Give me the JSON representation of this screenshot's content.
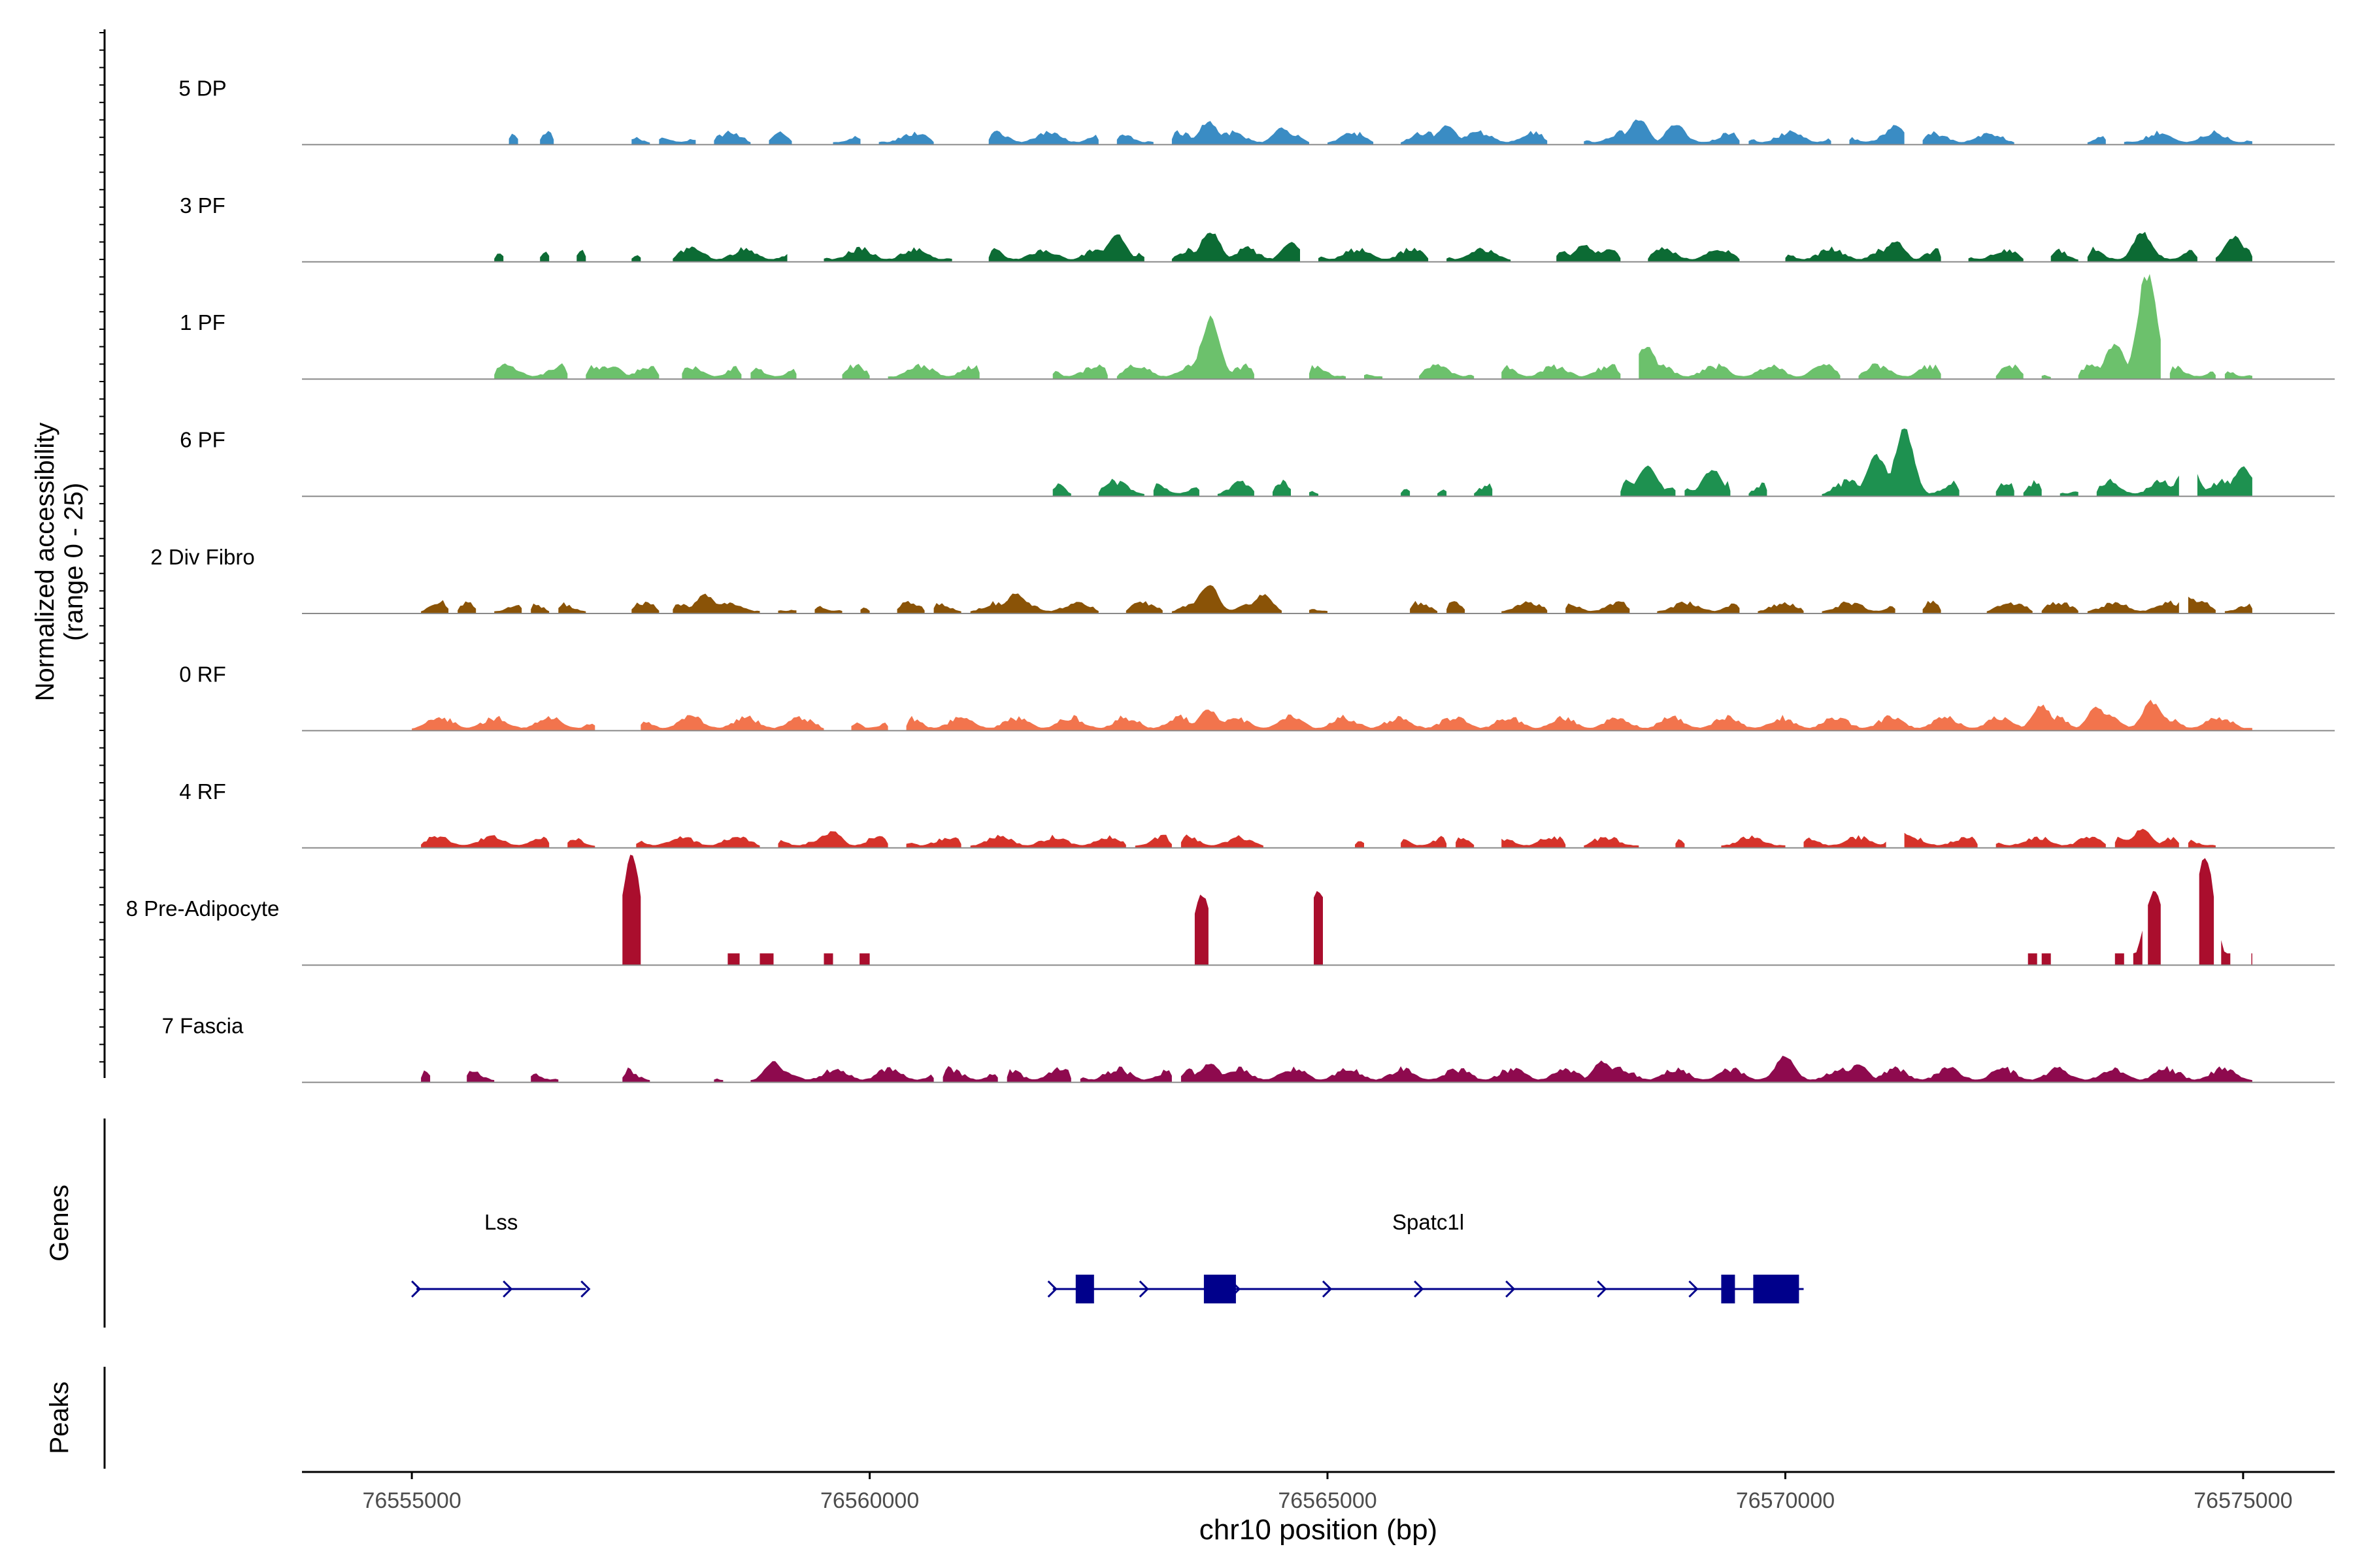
{
  "chart_data": {
    "type": "area",
    "title": "",
    "chromosome": "chr10",
    "xlabel": "chr10 position (bp)",
    "ylabel_line1": "Normalized accessibility",
    "ylabel_line2": "(range 0 - 25)",
    "xlim": [
      76553800,
      76576000
    ],
    "ylim": [
      0,
      25
    ],
    "region": [
      76555000,
      76575100
    ],
    "x_ticks": [
      {
        "value": 76555000,
        "label": "76555000"
      },
      {
        "value": 76560000,
        "label": "76560000"
      },
      {
        "value": 76565000,
        "label": "76565000"
      },
      {
        "value": 76570000,
        "label": "76570000"
      },
      {
        "value": 76575000,
        "label": "76575000"
      }
    ],
    "tracks": [
      {
        "name": "5 DP",
        "color": "#3a8cc4",
        "regions": [
          [
            76556060,
            76556160
          ],
          [
            76556400,
            76556550
          ],
          [
            76557400,
            76557600
          ],
          [
            76557700,
            76558100
          ],
          [
            76558300,
            76558700
          ],
          [
            76558900,
            76559150
          ],
          [
            76559600,
            76559900
          ],
          [
            76560100,
            76560700
          ],
          [
            76561300,
            76562500
          ],
          [
            76562700,
            76563100
          ],
          [
            76563300,
            76564800
          ],
          [
            76565000,
            76565500
          ],
          [
            76565800,
            76567400
          ],
          [
            76567800,
            76569500
          ],
          [
            76569600,
            76570500
          ],
          [
            76570700,
            76571300
          ],
          [
            76571500,
            76572500
          ],
          [
            76573300,
            76573500
          ],
          [
            76573700,
            76575100
          ]
        ],
        "peaks": [
          [
            76563700,
            5.5
          ],
          [
            76564500,
            4.0
          ],
          [
            76566300,
            4.5
          ],
          [
            76568400,
            6.0
          ],
          [
            76568800,
            5.0
          ],
          [
            76571200,
            4.5
          ]
        ],
        "noise": 2.2
      },
      {
        "name": "3 PF",
        "color": "#0c6b34",
        "regions": [
          [
            76555900,
            76556000
          ],
          [
            76556400,
            76556500
          ],
          [
            76556800,
            76556900
          ],
          [
            76557400,
            76557500
          ],
          [
            76557850,
            76559100
          ],
          [
            76559500,
            76560900
          ],
          [
            76561300,
            76563000
          ],
          [
            76563300,
            76564700
          ],
          [
            76564900,
            76566100
          ],
          [
            76566300,
            76567000
          ],
          [
            76567500,
            76568200
          ],
          [
            76568500,
            76569500
          ],
          [
            76570000,
            76571700
          ],
          [
            76572000,
            76572600
          ],
          [
            76572900,
            76573200
          ],
          [
            76573300,
            76574500
          ],
          [
            76574700,
            76575100
          ]
        ],
        "peaks": [
          [
            76559250,
            5.5
          ],
          [
            76562700,
            6.5
          ],
          [
            76563720,
            7.5
          ],
          [
            76564600,
            4.5
          ],
          [
            76567800,
            4.0
          ],
          [
            76571200,
            5.0
          ],
          [
            76573900,
            7.0
          ],
          [
            76574900,
            6.0
          ]
        ],
        "noise": 2.4
      },
      {
        "name": "1 PF",
        "color": "#6cc16c",
        "regions": [
          [
            76555900,
            76556700
          ],
          [
            76556900,
            76557700
          ],
          [
            76557950,
            76558600
          ],
          [
            76558700,
            76559200
          ],
          [
            76559700,
            76560000
          ],
          [
            76560200,
            76561200
          ],
          [
            76562000,
            76562600
          ],
          [
            76562700,
            76564200
          ],
          [
            76564800,
            76565200
          ],
          [
            76565400,
            76565600
          ],
          [
            76566000,
            76566600
          ],
          [
            76566900,
            76568200
          ],
          [
            76568400,
            76570600
          ],
          [
            76570800,
            76571700
          ],
          [
            76572300,
            76572600
          ],
          [
            76572800,
            76572900
          ],
          [
            76573200,
            76574100
          ],
          [
            76574200,
            76574700
          ],
          [
            76574800,
            76575100
          ]
        ],
        "peaks": [
          [
            76563720,
            14.5
          ],
          [
            76568480,
            8.0
          ],
          [
            76573950,
            25.0
          ],
          [
            76573600,
            8.5
          ],
          [
            76570400,
            3.5
          ],
          [
            76557200,
            3.0
          ]
        ],
        "noise": 2.5
      },
      {
        "name": "6 PF",
        "color": "#1e9150",
        "regions": [
          [
            76562000,
            76562200
          ],
          [
            76562500,
            76563000
          ],
          [
            76563100,
            76563600
          ],
          [
            76563800,
            76564200
          ],
          [
            76564400,
            76564600
          ],
          [
            76564800,
            76564900
          ],
          [
            76565800,
            76565900
          ],
          [
            76566200,
            76566300
          ],
          [
            76566600,
            76566800
          ],
          [
            76568200,
            76568800
          ],
          [
            76568900,
            76569400
          ],
          [
            76569600,
            76569800
          ],
          [
            76570400,
            76571900
          ],
          [
            76572300,
            76572500
          ],
          [
            76572600,
            76572800
          ],
          [
            76573000,
            76573200
          ],
          [
            76573400,
            76574300
          ],
          [
            76574500,
            76575100
          ]
        ],
        "peaks": [
          [
            76568500,
            7.5
          ],
          [
            76569200,
            6.5
          ],
          [
            76571000,
            10.0
          ],
          [
            76571300,
            15.5
          ],
          [
            76574400,
            8.5
          ],
          [
            76575000,
            7.0
          ]
        ],
        "noise": 2.8
      },
      {
        "name": "2 Div Fibro",
        "color": "#8a5307",
        "regions": [
          [
            76555100,
            76555400
          ],
          [
            76555500,
            76555700
          ],
          [
            76555900,
            76556200
          ],
          [
            76556300,
            76556500
          ],
          [
            76556600,
            76556900
          ],
          [
            76557400,
            76557700
          ],
          [
            76557850,
            76558800
          ],
          [
            76559000,
            76559200
          ],
          [
            76559400,
            76559700
          ],
          [
            76559900,
            76560000
          ],
          [
            76560300,
            76560600
          ],
          [
            76560700,
            76561000
          ],
          [
            76561100,
            76561500
          ],
          [
            76561500,
            76562500
          ],
          [
            76562800,
            76563200
          ],
          [
            76563300,
            76564500
          ],
          [
            76564800,
            76565000
          ],
          [
            76565900,
            76566200
          ],
          [
            76566300,
            76566500
          ],
          [
            76566900,
            76567400
          ],
          [
            76567600,
            76568300
          ],
          [
            76568600,
            76569500
          ],
          [
            76569700,
            76570200
          ],
          [
            76570400,
            76571200
          ],
          [
            76571500,
            76571700
          ],
          [
            76572200,
            76572700
          ],
          [
            76572800,
            76573200
          ],
          [
            76573300,
            76574300
          ],
          [
            76574400,
            76574700
          ],
          [
            76574800,
            76575100
          ]
        ],
        "peaks": [
          [
            76558200,
            4.5
          ],
          [
            76561600,
            5.0
          ],
          [
            76563700,
            7.0
          ],
          [
            76564300,
            4.5
          ],
          [
            76574400,
            4.0
          ]
        ],
        "noise": 2.0
      },
      {
        "name": "0 RF",
        "color": "#f2744d",
        "regions": [
          [
            76555000,
            76557000
          ],
          [
            76557500,
            76559500
          ],
          [
            76559800,
            76560200
          ],
          [
            76560400,
            76575100
          ]
        ],
        "peaks": [
          [
            76563700,
            5.0
          ],
          [
            76572800,
            6.0
          ],
          [
            76573400,
            5.5
          ],
          [
            76574000,
            7.0
          ]
        ],
        "noise": 2.5
      },
      {
        "name": "4 RF",
        "color": "#d6332a",
        "regions": [
          [
            76555100,
            76556500
          ],
          [
            76556700,
            76557000
          ],
          [
            76557450,
            76558800
          ],
          [
            76559000,
            76560200
          ],
          [
            76560400,
            76561000
          ],
          [
            76561100,
            76562800
          ],
          [
            76562900,
            76563300
          ],
          [
            76563400,
            76564300
          ],
          [
            76565300,
            76565400
          ],
          [
            76565800,
            76566300
          ],
          [
            76566400,
            76566600
          ],
          [
            76566900,
            76567600
          ],
          [
            76567800,
            76568400
          ],
          [
            76568800,
            76568900
          ],
          [
            76569300,
            76570000
          ],
          [
            76570200,
            76571100
          ],
          [
            76571300,
            76572100
          ],
          [
            76572300,
            76573500
          ],
          [
            76573600,
            76574300
          ],
          [
            76574400,
            76574700
          ]
        ],
        "peaks": [
          [
            76559600,
            4.0
          ],
          [
            76566800,
            3.5
          ],
          [
            76571250,
            4.0
          ],
          [
            76573900,
            4.5
          ]
        ],
        "noise": 2.0
      },
      {
        "name": "8 Pre-Adipocyte",
        "color": "#aa0e2d",
        "regions": [
          [
            76557300,
            76557500
          ],
          [
            76558450,
            76558580
          ],
          [
            76558800,
            76558950
          ],
          [
            76559500,
            76559600
          ],
          [
            76559890,
            76560000
          ],
          [
            76563550,
            76563700
          ],
          [
            76564850,
            76564950
          ],
          [
            76572650,
            76572750
          ],
          [
            76572800,
            76572900
          ],
          [
            76573600,
            76573700
          ],
          [
            76573800,
            76573900
          ],
          [
            76573960,
            76574100
          ],
          [
            76574520,
            76574680
          ],
          [
            76574760,
            76574860
          ],
          [
            76575090,
            76575100
          ]
        ],
        "peaks": [
          [
            76557400,
            25.0
          ],
          [
            76563630,
            16.0
          ],
          [
            76564900,
            17.0
          ],
          [
            76574030,
            17.0
          ],
          [
            76574580,
            25.0
          ]
        ],
        "noise": 0.0
      },
      {
        "name": "7 Fascia",
        "color": "#8e0a4e",
        "regions": [
          [
            76555100,
            76555200
          ],
          [
            76555600,
            76555900
          ],
          [
            76556300,
            76556600
          ],
          [
            76557300,
            76557600
          ],
          [
            76558300,
            76558400
          ],
          [
            76558700,
            76560700
          ],
          [
            76560800,
            76561400
          ],
          [
            76561500,
            76562200
          ],
          [
            76562300,
            76563300
          ],
          [
            76563400,
            76575100
          ]
        ],
        "peaks": [
          [
            76558950,
            5.0
          ],
          [
            76563720,
            4.5
          ],
          [
            76568000,
            5.0
          ],
          [
            76570000,
            6.5
          ],
          [
            76570800,
            4.5
          ]
        ],
        "noise": 2.5
      }
    ],
    "genes_label": "Genes",
    "peaks_label": "Peaks",
    "genes": [
      {
        "name": "Lss",
        "start": 76555050,
        "end": 76556900,
        "arrows": [
          76555050,
          76556050,
          76556900
        ],
        "exons": []
      },
      {
        "name": "Spatc1l",
        "start": 76562000,
        "end": 76570200,
        "arrows": [
          76562000,
          76563000,
          76564000,
          76565000,
          76566000,
          76567000,
          76568000,
          76569000
        ],
        "exons": [
          [
            76562250,
            76562450
          ],
          [
            76563650,
            76564000
          ],
          [
            76569300,
            76569450
          ],
          [
            76569650,
            76570150
          ]
        ]
      }
    ],
    "colors": {
      "axis": "#000000",
      "baseline": "#8a8a8a",
      "gene": "#00008b",
      "tick_label": "#4d4d4d"
    }
  }
}
